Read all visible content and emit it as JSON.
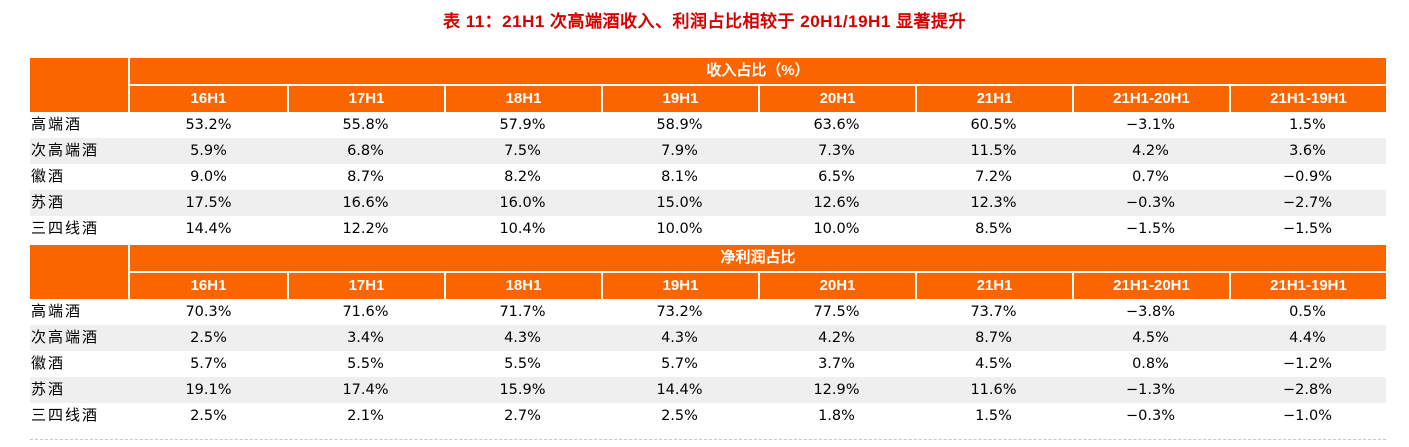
{
  "title": "表 11：21H1 次高端酒收入、利润占比相较于 20H1/19H1 显著提升",
  "columns": [
    "16H1",
    "17H1",
    "18H1",
    "19H1",
    "20H1",
    "21H1",
    "21H1-20H1",
    "21H1-19H1"
  ],
  "sections": [
    {
      "header": "收入占比（%）",
      "rows": [
        {
          "label": "高端酒",
          "values": [
            "53.2%",
            "55.8%",
            "57.9%",
            "58.9%",
            "63.6%",
            "60.5%",
            "−3.1%",
            "1.5%"
          ]
        },
        {
          "label": "次高端酒",
          "values": [
            "5.9%",
            "6.8%",
            "7.5%",
            "7.9%",
            "7.3%",
            "11.5%",
            "4.2%",
            "3.6%"
          ]
        },
        {
          "label": "徽酒",
          "values": [
            "9.0%",
            "8.7%",
            "8.2%",
            "8.1%",
            "6.5%",
            "7.2%",
            "0.7%",
            "−0.9%"
          ]
        },
        {
          "label": "苏酒",
          "values": [
            "17.5%",
            "16.6%",
            "16.0%",
            "15.0%",
            "12.6%",
            "12.3%",
            "−0.3%",
            "−2.7%"
          ]
        },
        {
          "label": "三四线酒",
          "values": [
            "14.4%",
            "12.2%",
            "10.4%",
            "10.0%",
            "10.0%",
            "8.5%",
            "−1.5%",
            "−1.5%"
          ]
        }
      ]
    },
    {
      "header": "净利润占比",
      "rows": [
        {
          "label": "高端酒",
          "values": [
            "70.3%",
            "71.6%",
            "71.7%",
            "73.2%",
            "77.5%",
            "73.7%",
            "−3.8%",
            "0.5%"
          ]
        },
        {
          "label": "次高端酒",
          "values": [
            "2.5%",
            "3.4%",
            "4.3%",
            "4.3%",
            "4.2%",
            "8.7%",
            "4.5%",
            "4.4%"
          ]
        },
        {
          "label": "徽酒",
          "values": [
            "5.7%",
            "5.5%",
            "5.5%",
            "5.7%",
            "3.7%",
            "4.5%",
            "0.8%",
            "−1.2%"
          ]
        },
        {
          "label": "苏酒",
          "values": [
            "19.1%",
            "17.4%",
            "15.9%",
            "14.4%",
            "12.9%",
            "11.6%",
            "−1.3%",
            "−2.8%"
          ]
        },
        {
          "label": "三四线酒",
          "values": [
            "2.5%",
            "2.1%",
            "2.7%",
            "2.5%",
            "1.8%",
            "1.5%",
            "−0.3%",
            "−1.0%"
          ]
        }
      ]
    }
  ],
  "colors": {
    "accent": "#fb6500",
    "stripe": "#efefef",
    "title_red": "#d60000"
  }
}
